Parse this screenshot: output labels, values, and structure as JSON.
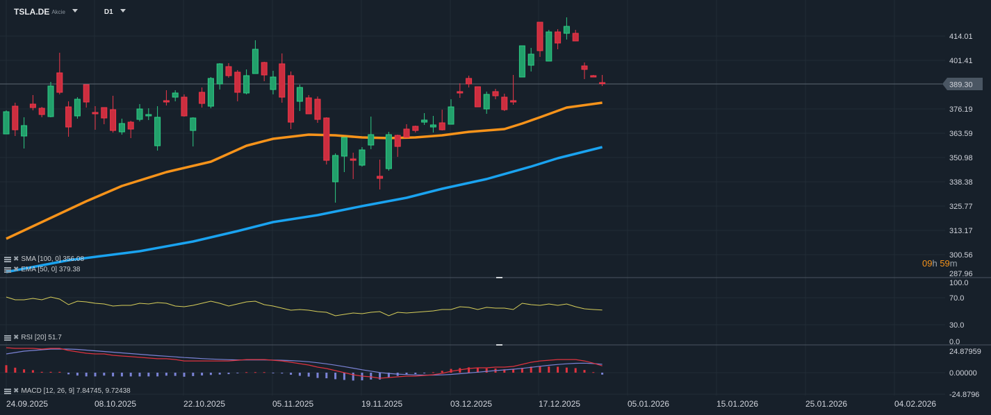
{
  "header": {
    "symbol": "TSLA.DE",
    "type": "Akcie",
    "timeframe": "D1"
  },
  "colors": {
    "bg": "#17202a",
    "grid": "#222c36",
    "up_fill": "#22a06b",
    "up_border": "#2ecc85",
    "down_fill": "#cc2e3f",
    "down_border": "#f0384a",
    "ema": "#f7931a",
    "sma": "#1aa3f0",
    "rsi": "#d8cf5a",
    "macd": "#e0333f",
    "signal": "#7b83d6",
    "price_tag": "#4a5663",
    "timer": "#f7931a"
  },
  "indicators": {
    "sma": "SMA [100,  0] 356.08",
    "ema": "EMA [50,  0] 379.38",
    "rsi": "RSI [20]  51.7",
    "macd": "MACD [12,  26, 9] 7.84745,  9.72438"
  },
  "timer": {
    "hours": "09",
    "h": "h",
    "minutes": "59",
    "m": "m"
  },
  "current_price": "389.30",
  "chart_data": [
    {
      "type": "candlestick",
      "title": "TSLA.DE D1",
      "price_axis": [
        "414.01",
        "401.41",
        "376.19",
        "363.59",
        "350.98",
        "338.38",
        "325.77",
        "313.17",
        "300.56",
        "287.96"
      ],
      "x_ticks": [
        "24.09.2025",
        "08.10.2025",
        "22.10.2025",
        "05.11.2025",
        "19.11.2025",
        "03.12.2025",
        "17.12.2025",
        "05.01.2026",
        "15.01.2026",
        "25.01.2026",
        "04.02.2026"
      ],
      "ohlc": [
        [
          363.25,
          375.49,
          363.25,
          374.77
        ],
        [
          377.65,
          379.45,
          362.17,
          365.41
        ],
        [
          362.17,
          371.89,
          355.69,
          367.57
        ],
        [
          378.73,
          383.41,
          375.49,
          376.93
        ],
        [
          376.57,
          377.29,
          371.89,
          373.33
        ],
        [
          372.25,
          390.25,
          371.89,
          388.09
        ],
        [
          394.93,
          405.37,
          383.77,
          384.85
        ],
        [
          377.29,
          380.17,
          361.81,
          366.85
        ],
        [
          372.61,
          382.33,
          371.17,
          381.25
        ],
        [
          388.81,
          388.81,
          376.93,
          379.81
        ],
        [
          374.41,
          377.65,
          365.41,
          373.69
        ],
        [
          376.93,
          376.93,
          368.29,
          371.53
        ],
        [
          375.85,
          383.05,
          363.97,
          365.05
        ],
        [
          364.33,
          371.17,
          362.89,
          368.65
        ],
        [
          369.37,
          370.09,
          361.09,
          365.77
        ],
        [
          370.81,
          378.73,
          369.73,
          376.21
        ],
        [
          372.61,
          376.57,
          370.45,
          373.33
        ],
        [
          357.13,
          377.65,
          354.61,
          371.89
        ],
        [
          380.53,
          385.93,
          378.01,
          379.81
        ],
        [
          382.33,
          385.93,
          380.17,
          384.49
        ],
        [
          382.33,
          383.77,
          372.25,
          372.61
        ],
        [
          365.05,
          371.89,
          356.77,
          371.53
        ],
        [
          384.85,
          387.37,
          376.93,
          379.09
        ],
        [
          377.65,
          392.77,
          376.57,
          392.05
        ],
        [
          389.17,
          399.97,
          386.29,
          399.61
        ],
        [
          398.17,
          399.97,
          392.41,
          393.49
        ],
        [
          395.29,
          396.37,
          380.17,
          384.85
        ],
        [
          384.49,
          396.73,
          383.77,
          393.49
        ],
        [
          394.57,
          411.85,
          394.57,
          407.17
        ],
        [
          400.33,
          400.69,
          390.61,
          393.85
        ],
        [
          386.29,
          396.01,
          383.77,
          392.77
        ],
        [
          399.61,
          405.01,
          379.45,
          382.33
        ],
        [
          393.49,
          395.65,
          365.77,
          369.37
        ],
        [
          380.17,
          388.81,
          375.13,
          387.37
        ],
        [
          381.97,
          383.41,
          373.69,
          373.69
        ],
        [
          381.25,
          382.69,
          369.01,
          370.81
        ],
        [
          371.53,
          371.89,
          347.41,
          349.57
        ],
        [
          338.41,
          353.17,
          327.61,
          352.09
        ],
        [
          351.73,
          361.45,
          343.45,
          361.45
        ],
        [
          350.29,
          353.53,
          339.85,
          349.57
        ],
        [
          347.05,
          356.41,
          346.33,
          354.97
        ],
        [
          357.49,
          372.25,
          355.33,
          362.89
        ],
        [
          341.29,
          349.93,
          334.45,
          340.21
        ],
        [
          345.25,
          364.33,
          344.17,
          362.89
        ],
        [
          362.53,
          362.89,
          351.37,
          356.77
        ],
        [
          365.77,
          368.29,
          361.45,
          361.45
        ],
        [
          367.21,
          367.57,
          363.97,
          365.05
        ],
        [
          369.37,
          374.05,
          367.93,
          370.45
        ],
        [
          366.85,
          372.61,
          363.97,
          367.93
        ],
        [
          369.01,
          375.85,
          365.05,
          365.41
        ],
        [
          368.29,
          381.25,
          368.29,
          377.29
        ],
        [
          385.21,
          389.53,
          381.97,
          384.49
        ],
        [
          392.05,
          393.49,
          387.37,
          389.17
        ],
        [
          387.73,
          387.73,
          377.29,
          377.29
        ],
        [
          376.21,
          385.21,
          373.69,
          383.77
        ],
        [
          385.21,
          386.65,
          381.25,
          383.05
        ],
        [
          382.33,
          384.13,
          375.13,
          375.85
        ],
        [
          380.53,
          393.85,
          378.37,
          379.81
        ],
        [
          392.77,
          408.97,
          392.77,
          408.97
        ],
        [
          398.89,
          407.89,
          395.65,
          404.65
        ],
        [
          421.21,
          421.21,
          403.21,
          406.45
        ],
        [
          401.05,
          417.25,
          401.05,
          416.17
        ],
        [
          416.17,
          417.61,
          407.17,
          410.41
        ],
        [
          415.45,
          423.73,
          412.21,
          419.05
        ],
        [
          415.45,
          417.25,
          411.49,
          411.49
        ],
        [
          398.53,
          400.33,
          391.69,
          396.73
        ],
        [
          393.49,
          393.85,
          392.77,
          392.77
        ],
        [
          389.89,
          393.85,
          388.09,
          389.3
        ]
      ],
      "series": [
        {
          "name": "EMA 50",
          "points": [
            [
              0,
              308.89
            ],
            [
              4,
              317.53
            ],
            [
              9,
              328.33
            ],
            [
              13,
              336.25
            ],
            [
              18,
              343.45
            ],
            [
              23,
              348.85
            ],
            [
              27,
              357.13
            ],
            [
              30,
              360.73
            ],
            [
              34,
              362.89
            ],
            [
              37,
              362.53
            ],
            [
              40,
              361.45
            ],
            [
              43,
              361.09
            ],
            [
              46,
              361.45
            ],
            [
              49,
              362.53
            ],
            [
              52,
              364.33
            ],
            [
              56,
              365.77
            ],
            [
              58,
              368.65
            ],
            [
              60,
              371.89
            ],
            [
              63,
              376.93
            ],
            [
              67,
              379.45
            ]
          ]
        },
        {
          "name": "SMA 100",
          "points": [
            [
              0,
              291.61
            ],
            [
              7,
              297.73
            ],
            [
              15,
              302.41
            ],
            [
              21,
              307.45
            ],
            [
              26,
              312.85
            ],
            [
              30,
              317.53
            ],
            [
              35,
              321.13
            ],
            [
              40,
              325.81
            ],
            [
              45,
              330.13
            ],
            [
              49,
              334.81
            ],
            [
              54,
              339.85
            ],
            [
              59,
              346.33
            ],
            [
              62,
              350.65
            ],
            [
              67,
              356.41
            ]
          ]
        }
      ]
    },
    {
      "type": "line",
      "title": "RSI [20]",
      "y_ticks": [
        "100.0",
        "70.0",
        "30.0",
        "0.0"
      ],
      "ylim": [
        0,
        100
      ],
      "values": [
        71.0,
        66.9,
        66.9,
        69.0,
        66.9,
        71.0,
        67.9,
        59.7,
        64.9,
        63.8,
        61.8,
        60.8,
        57.7,
        58.7,
        58.7,
        61.8,
        60.8,
        62.8,
        61.8,
        57.7,
        56.7,
        58.7,
        61.8,
        64.9,
        61.8,
        57.7,
        60.8,
        63.8,
        64.9,
        59.7,
        57.7,
        54.6,
        51.5,
        52.6,
        51.5,
        49.5,
        48.5,
        43.3,
        45.4,
        47.4,
        46.4,
        48.5,
        49.5,
        43.3,
        48.5,
        47.4,
        48.5,
        49.5,
        50.5,
        52.6,
        52.6,
        56.7,
        55.7,
        52.6,
        55.7,
        54.6,
        54.6,
        52.6,
        61.8,
        59.7,
        58.7,
        60.8,
        58.7,
        60.8,
        56.7,
        53.6,
        52.6,
        51.7
      ]
    },
    {
      "type": "bar+line",
      "title": "MACD [12, 26, 9]",
      "y_ticks": [
        "24.87959",
        "0.00000",
        "-24.8796"
      ],
      "ylim": [
        -24.8796,
        24.87959
      ],
      "macd": [
        28.9,
        28.1,
        28.1,
        28.1,
        27.3,
        28.1,
        28.1,
        25.7,
        24.1,
        22.5,
        21.7,
        21.7,
        20.1,
        19.3,
        18.5,
        17.7,
        16.9,
        16.1,
        16.1,
        15.2,
        13.6,
        13.6,
        13.6,
        13.6,
        13.6,
        13.6,
        14.4,
        15.2,
        15.2,
        15.2,
        14.4,
        13.6,
        12.0,
        10.4,
        8.8,
        6.4,
        4.8,
        2.4,
        0,
        -2.4,
        -4.0,
        -4.8,
        -6.4,
        -5.6,
        -4.8,
        -4.0,
        -4.0,
        -3.2,
        -2.4,
        -0.8,
        1.6,
        3.2,
        4.8,
        5.6,
        5.6,
        6.4,
        6.4,
        7.2,
        9.6,
        12.0,
        13.6,
        14.4,
        15.2,
        15.2,
        15.2,
        13.6,
        11.0,
        7.85
      ],
      "signal": [
        21.7,
        23.3,
        24.9,
        25.7,
        26.5,
        27.3,
        27.3,
        27.3,
        26.9,
        26.1,
        25.3,
        24.5,
        23.7,
        22.9,
        22.1,
        21.3,
        20.5,
        19.7,
        19.0,
        18.3,
        17.5,
        16.9,
        16.3,
        15.8,
        15.4,
        15.0,
        14.8,
        14.7,
        14.7,
        14.7,
        14.6,
        14.4,
        14.0,
        13.4,
        12.6,
        11.5,
        10.2,
        8.7,
        7.0,
        5.2,
        3.4,
        1.8,
        0.2,
        -0.9,
        -1.7,
        -2.2,
        -2.6,
        -2.8,
        -2.8,
        -2.6,
        -2.0,
        -1.2,
        -0.3,
        0.6,
        1.5,
        2.4,
        3.2,
        4.0,
        5.0,
        6.2,
        7.4,
        8.5,
        9.5,
        10.3,
        10.8,
        11.0,
        10.5,
        9.72
      ]
    }
  ]
}
